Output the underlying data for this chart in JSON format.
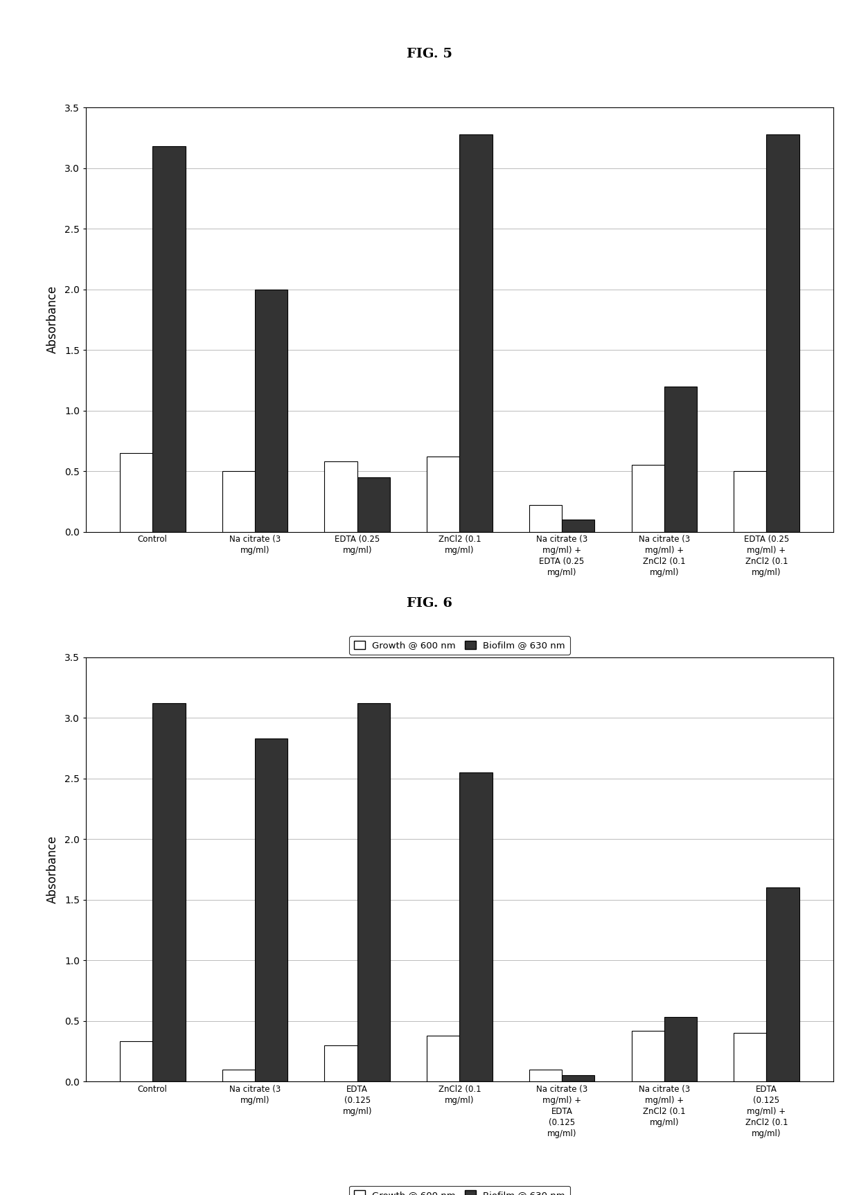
{
  "fig5": {
    "title": "FIG. 5",
    "categories": [
      "Control",
      "Na citrate (3\nmg/ml)",
      "EDTA (0.25\nmg/ml)",
      "ZnCl2 (0.1\nmg/ml)",
      "Na citrate (3\nmg/ml) +\nEDTA (0.25\nmg/ml)",
      "Na citrate (3\nmg/ml) +\nZnCl2 (0.1\nmg/ml)",
      "EDTA (0.25\nmg/ml) +\nZnCl2 (0.1\nmg/ml)"
    ],
    "growth": [
      0.65,
      0.5,
      0.58,
      0.62,
      0.22,
      0.55,
      0.5
    ],
    "biofilm": [
      3.18,
      2.0,
      0.45,
      3.28,
      0.1,
      1.2,
      3.28
    ],
    "ylabel": "Absorbance",
    "ylim": [
      0,
      3.5
    ],
    "yticks": [
      0,
      0.5,
      1.0,
      1.5,
      2.0,
      2.5,
      3.0,
      3.5
    ]
  },
  "fig6": {
    "title": "FIG. 6",
    "categories": [
      "Control",
      "Na citrate (3\nmg/ml)",
      "EDTA\n(0.125\nmg/ml)",
      "ZnCl2 (0.1\nmg/ml)",
      "Na citrate (3\nmg/ml) +\nEDTA\n(0.125\nmg/ml)",
      "Na citrate (3\nmg/ml) +\nZnCl2 (0.1\nmg/ml)",
      "EDTA\n(0.125\nmg/ml) +\nZnCl2 (0.1\nmg/ml)"
    ],
    "growth": [
      0.33,
      0.1,
      0.3,
      0.38,
      0.1,
      0.42,
      0.4
    ],
    "biofilm": [
      3.12,
      2.83,
      3.12,
      2.55,
      0.05,
      0.53,
      1.6
    ],
    "ylabel": "Absorbance",
    "ylim": [
      0,
      3.5
    ],
    "yticks": [
      0,
      0.5,
      1.0,
      1.5,
      2.0,
      2.5,
      3.0,
      3.5
    ]
  },
  "legend_growth": "Growth @ 600 nm",
  "legend_biofilm": "Biofilm @ 630 nm",
  "bar_color_growth": "#ffffff",
  "bar_color_biofilm": "#333333",
  "bar_edge_color": "#000000",
  "grid_color": "#bbbbbb",
  "background_color": "#ffffff"
}
